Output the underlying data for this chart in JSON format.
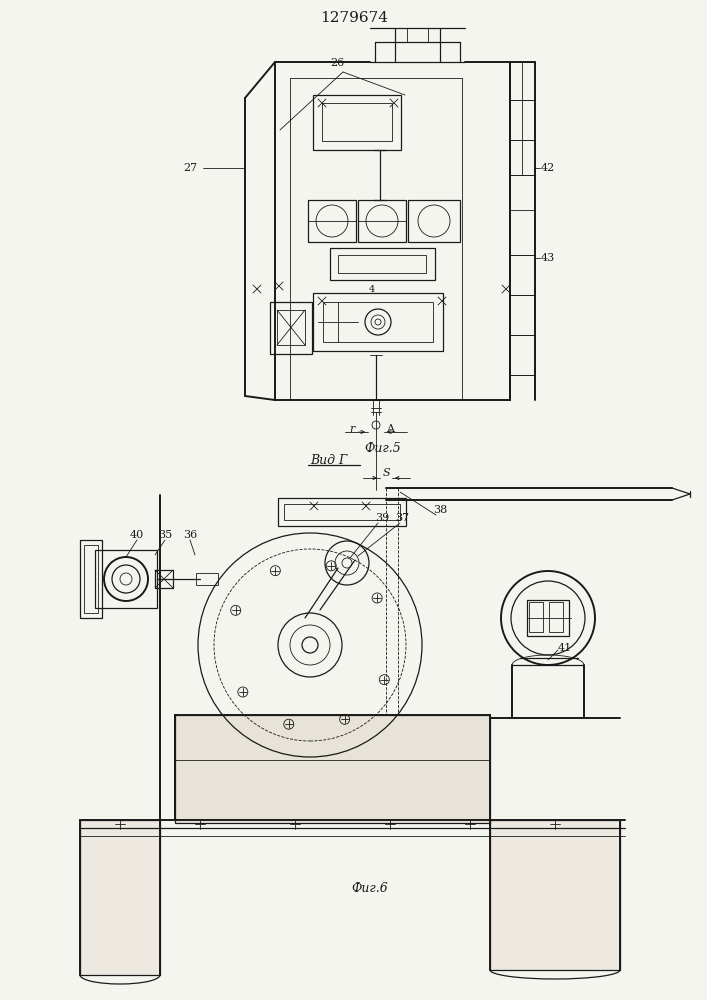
{
  "title": "1279674",
  "fig5_label": "Фиг.5",
  "fig6_label": "Фиг.6",
  "vid_g_label": "Вид Г",
  "line_color": "#1a1a1a",
  "bg_color": "#f5f5f0"
}
